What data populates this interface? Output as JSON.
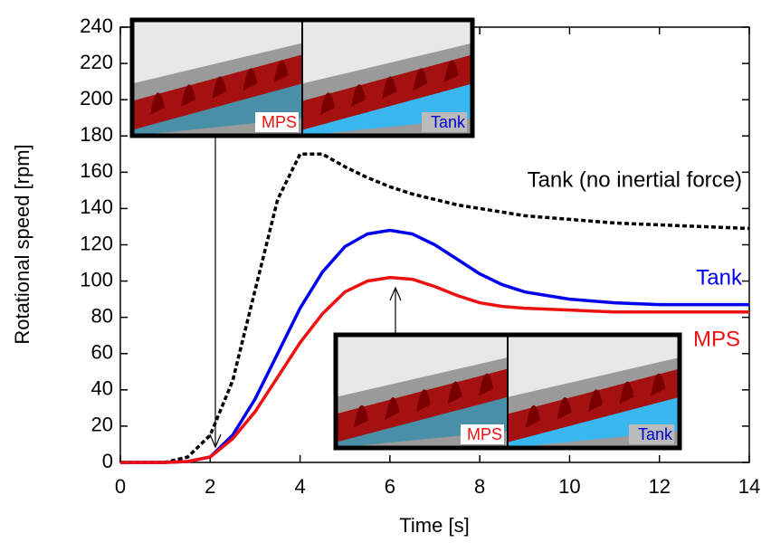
{
  "chart_data": {
    "type": "line",
    "xlabel": "Time [s]",
    "ylabel": "Rotational speed [rpm]",
    "x": [
      0,
      0.5,
      1,
      1.5,
      2,
      2.5,
      3,
      3.5,
      4,
      4.5,
      5,
      5.5,
      6,
      6.5,
      7,
      7.5,
      8,
      8.5,
      9,
      9.5,
      10,
      10.5,
      11,
      11.5,
      12,
      12.5,
      13,
      13.5,
      14
    ],
    "series": [
      {
        "name": "Tank (no inertial force)",
        "color": "#000000",
        "dashed": true,
        "values": [
          0,
          0,
          0,
          3,
          15,
          45,
          95,
          145,
          170,
          170,
          163,
          157,
          152,
          148,
          145,
          142,
          140,
          138,
          136,
          135,
          134,
          133,
          132,
          131.5,
          131,
          130.5,
          130,
          129.5,
          129
        ]
      },
      {
        "name": "Tank",
        "color": "#0000ee",
        "dashed": false,
        "values": [
          0,
          0,
          0,
          0.5,
          3,
          15,
          35,
          60,
          85,
          105,
          119,
          126,
          128,
          126,
          120,
          112,
          104,
          98,
          94,
          92,
          90,
          89,
          88,
          87.5,
          87,
          87,
          87,
          87,
          87
        ]
      },
      {
        "name": "MPS",
        "color": "#ee1111",
        "dashed": false,
        "values": [
          0,
          0,
          0,
          0.5,
          3,
          13,
          28,
          47,
          66,
          82,
          94,
          100,
          102,
          101,
          97,
          92,
          88,
          86,
          85,
          84.5,
          84,
          83.5,
          83,
          83,
          83,
          83,
          83,
          83,
          83
        ]
      }
    ],
    "xlim": [
      0,
      14
    ],
    "xticks": [
      0,
      2,
      4,
      6,
      8,
      10,
      12,
      14
    ],
    "ylim": [
      0,
      240
    ],
    "yticks": [
      0,
      20,
      40,
      60,
      80,
      100,
      120,
      140,
      160,
      180,
      200,
      220,
      240
    ],
    "insets": [
      {
        "labels": [
          "MPS",
          "Tank"
        ]
      },
      {
        "labels": [
          "MPS",
          "Tank"
        ]
      }
    ]
  }
}
